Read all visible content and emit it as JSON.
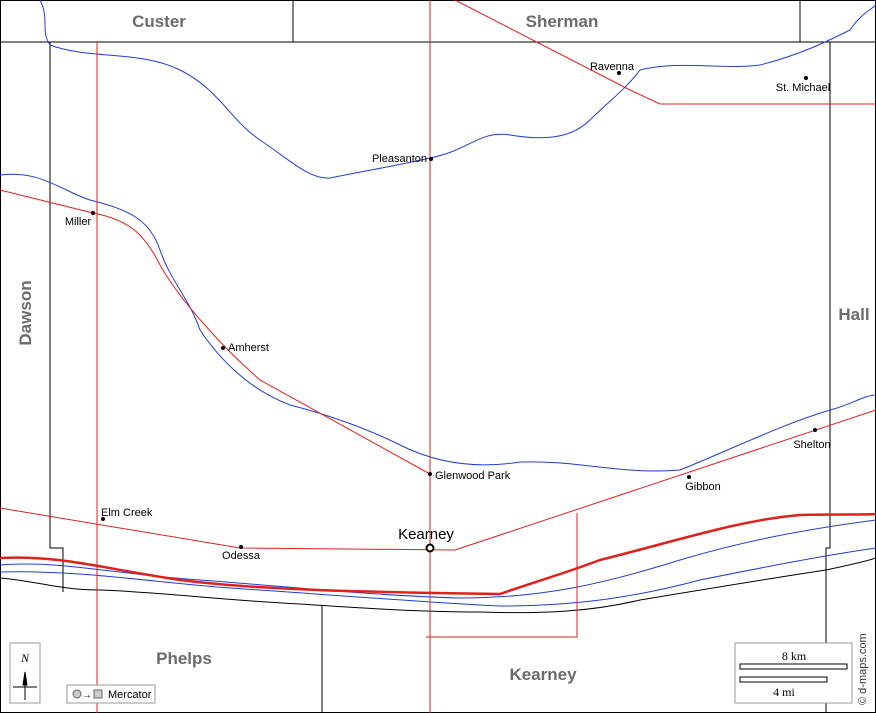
{
  "counties": [
    "Custer",
    "Sherman",
    "Dawson",
    "Hall",
    "Phelps",
    "Kearney"
  ],
  "towns": [
    "Ravenna",
    "St. Michael",
    "Pleasanton",
    "Miller",
    "Amherst",
    "Glenwood Park",
    "Shelton",
    "Gibbon",
    "Elm Creek",
    "Odessa"
  ],
  "county_seat": "Kearney",
  "compass": "N",
  "projection": "Mercator",
  "scale": {
    "km": "8 km",
    "mi": "4 mi"
  },
  "credit": "© d-maps.com"
}
